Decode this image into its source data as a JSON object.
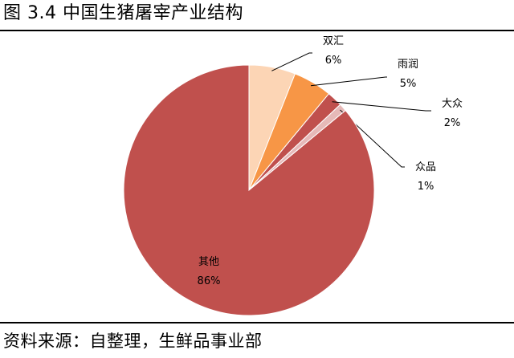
{
  "header": {
    "title": "图 3.4  中国生猪屠宰产业结构"
  },
  "footer": {
    "source": "资料来源：自整理，生鲜品事业部"
  },
  "chart_data": {
    "type": "pie",
    "title": "图 3.4  中国生猪屠宰产业结构",
    "slices": [
      {
        "name": "双汇",
        "value": 6,
        "label": "6%",
        "color": "#fcd5b5"
      },
      {
        "name": "雨润",
        "value": 5,
        "label": "5%",
        "color": "#f79646"
      },
      {
        "name": "大众",
        "value": 2,
        "label": "2%",
        "color": "#c0504d"
      },
      {
        "name": "众品",
        "value": 1,
        "label": "1%",
        "color": "#e6b9b8"
      },
      {
        "name": "其他",
        "value": 86,
        "label": "86%",
        "color": "#c0504d"
      }
    ],
    "start_angle_deg": 0,
    "direction": "clockwise",
    "legend": "none",
    "data_labels": "outside-with-leader-lines"
  }
}
